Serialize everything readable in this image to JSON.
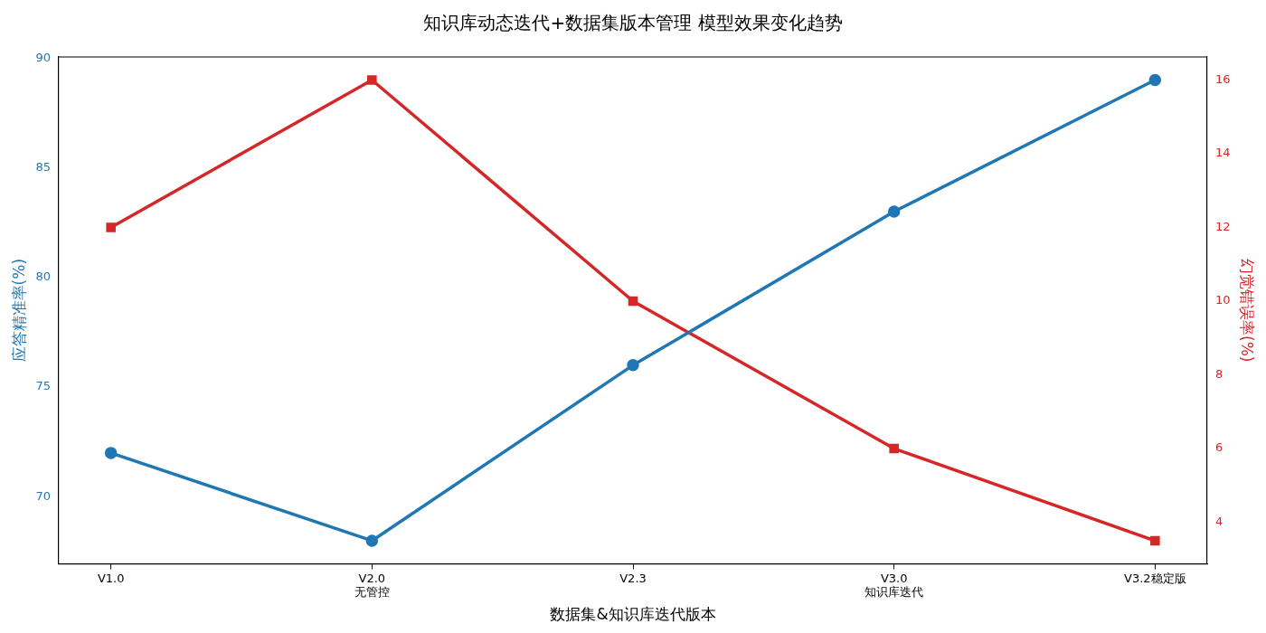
{
  "chart_data": {
    "type": "line",
    "title": "知识库动态迭代+数据集版本管理 模型效果变化趋势",
    "xlabel": "数据集&知识库迭代版本",
    "ylabel": "应答精准率(%)",
    "y2label": "幻觉错误率(%)",
    "categories": [
      "V1.0",
      "V2.0\n无管控",
      "V2.3",
      "V3.0\n知识库迭代",
      "V3.2稳定版"
    ],
    "series": [
      {
        "name": null,
        "color": "#1f77b4",
        "values": [
          72,
          68,
          76,
          83,
          89
        ],
        "marker": "circle"
      },
      {
        "name": null,
        "color": "#d62728",
        "values": [
          12,
          16,
          10,
          6,
          3.5
        ],
        "marker": "square",
        "axis": "y2"
      }
    ],
    "ylim": [
      66.95,
      90.05
    ],
    "yticks": [
      70,
      75,
      80,
      85,
      90
    ],
    "y2lim": [
      2.875,
      16.625
    ],
    "y2ticks": [
      4,
      6,
      8,
      10,
      12,
      14,
      16
    ],
    "grid": false,
    "legend": false,
    "line_style": "solid"
  }
}
